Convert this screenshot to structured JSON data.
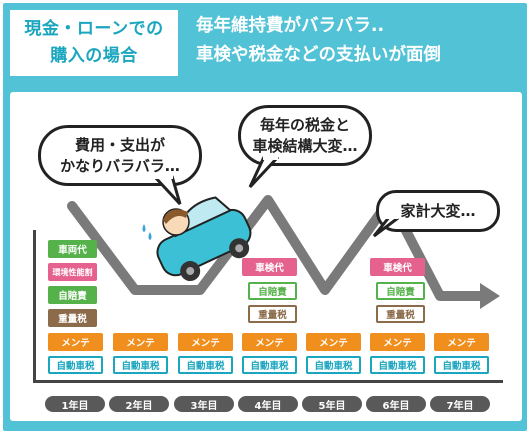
{
  "header": {
    "left_line1": "現金・ローンでの",
    "left_line2": "購入の場合",
    "right_line1": "毎年維持費がバラバラ..",
    "right_line2": "車検や税金などの支払いが面倒"
  },
  "bubbles": {
    "b1_line1": "費用・支出が",
    "b1_line2": "かなりバラバラ…",
    "b2_line1": "毎年の税金と",
    "b2_line2": "車検結構大変…",
    "b3_line1": "家計大変…"
  },
  "cost_labels": {
    "vehicle": "車両代",
    "eco": "環境性能割",
    "liability": "自賠責",
    "weight": "重量税",
    "inspection": "車検代",
    "maintenance": "メンテ",
    "auto_tax": "自動車税"
  },
  "years": [
    "1年目",
    "2年目",
    "3年目",
    "4年目",
    "5年目",
    "6年目",
    "7年目"
  ],
  "colors": {
    "accent": "#52c3d6",
    "vehicle": "#55b24a",
    "eco": "#e5628f",
    "liability": "#55b24a",
    "weight": "#8b6b4a",
    "inspection": "#e5628f",
    "maintenance": "#f08e1e",
    "auto_tax": "#1aa6bf",
    "road": "#7a7a7a"
  }
}
